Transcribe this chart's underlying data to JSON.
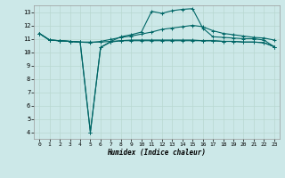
{
  "xlabel": "Humidex (Indice chaleur)",
  "bg_color": "#cce8e8",
  "grid_color": "#b8d8d0",
  "line_color": "#006666",
  "xlim": [
    -0.5,
    23.5
  ],
  "ylim": [
    3.5,
    13.5
  ],
  "xticks": [
    0,
    1,
    2,
    3,
    4,
    5,
    6,
    7,
    8,
    9,
    10,
    11,
    12,
    13,
    14,
    15,
    16,
    17,
    18,
    19,
    20,
    21,
    22,
    23
  ],
  "yticks": [
    4,
    5,
    6,
    7,
    8,
    9,
    10,
    11,
    12,
    13
  ],
  "line1_x": [
    0,
    1,
    2,
    3,
    4,
    5,
    6,
    7,
    8,
    9,
    10,
    11,
    12,
    13,
    14,
    15,
    16,
    17,
    18,
    19,
    20,
    21,
    22,
    23
  ],
  "line1_y": [
    11.4,
    10.9,
    10.85,
    10.8,
    10.75,
    10.75,
    10.75,
    10.8,
    10.85,
    10.85,
    10.85,
    10.85,
    10.85,
    10.85,
    10.85,
    10.85,
    10.85,
    10.85,
    10.8,
    10.8,
    10.75,
    10.75,
    10.7,
    10.4
  ],
  "line2_x": [
    0,
    1,
    2,
    3,
    4,
    5,
    6,
    7,
    8,
    9,
    10,
    11,
    12,
    13,
    14,
    15,
    16,
    17,
    18,
    19,
    20,
    21,
    22,
    23
  ],
  "line2_y": [
    11.4,
    10.9,
    10.85,
    10.8,
    10.75,
    4.0,
    10.35,
    10.75,
    10.85,
    10.9,
    10.9,
    10.9,
    10.9,
    10.9,
    10.9,
    10.9,
    10.85,
    10.85,
    10.8,
    10.8,
    10.75,
    10.75,
    10.7,
    10.4
  ],
  "line3_x": [
    0,
    1,
    2,
    3,
    4,
    5,
    6,
    7,
    8,
    9,
    10,
    11,
    12,
    13,
    14,
    15,
    16,
    17,
    18,
    19,
    20,
    21,
    22,
    23
  ],
  "line3_y": [
    11.4,
    10.9,
    10.85,
    10.8,
    10.75,
    10.7,
    10.8,
    10.95,
    11.1,
    11.2,
    11.35,
    11.5,
    11.7,
    11.8,
    11.9,
    12.0,
    11.9,
    11.6,
    11.4,
    11.3,
    11.2,
    11.1,
    11.05,
    10.9
  ],
  "line4_x": [
    0,
    1,
    2,
    3,
    4,
    5,
    6,
    7,
    8,
    9,
    10,
    11,
    12,
    13,
    14,
    15,
    16,
    17,
    18,
    19,
    20,
    21,
    22,
    23
  ],
  "line4_y": [
    11.4,
    10.9,
    10.85,
    10.8,
    10.75,
    4.0,
    10.35,
    10.8,
    11.15,
    11.3,
    11.5,
    13.05,
    12.9,
    13.1,
    13.2,
    13.25,
    11.8,
    11.15,
    11.1,
    11.05,
    11.0,
    11.0,
    10.9,
    10.4
  ]
}
